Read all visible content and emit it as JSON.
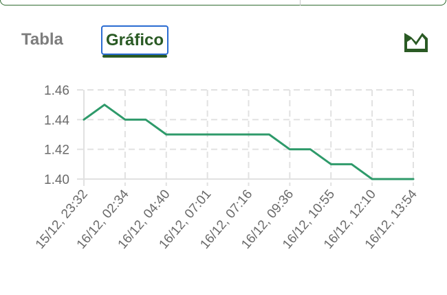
{
  "tabs": [
    {
      "label": "Tabla",
      "active": false
    },
    {
      "label": "Gráfico",
      "active": true
    }
  ],
  "icons": {
    "chart_toggle": "area-chart-icon"
  },
  "colors": {
    "line": "#2e9a6a",
    "active_tab_text": "#2a5a24",
    "focus_outline": "#2a6bd1",
    "inactive_tab_text": "#7d7d7d",
    "grid": "#e1e1e1"
  },
  "chart_data": {
    "type": "line",
    "title": "",
    "xlabel": "",
    "ylabel": "",
    "ylim": [
      1.4,
      1.46
    ],
    "yticks": [
      "1.46",
      "1.44",
      "1.42",
      "1.40"
    ],
    "grid": true,
    "legend": "none",
    "xtick_labels": [
      "15/12, 23:32",
      "16/12, 02:34",
      "16/12, 04:40",
      "16/12, 07:01",
      "16/12, 07:16",
      "16/12, 09:36",
      "16/12, 10:55",
      "16/12, 12:10",
      "16/12, 13:54"
    ],
    "x": [
      "15/12, 23:32",
      "",
      "16/12, 02:34",
      "",
      "16/12, 04:40",
      "",
      "16/12, 07:01",
      "",
      "16/12, 07:16",
      "",
      "16/12, 09:36",
      "",
      "16/12, 10:55",
      "",
      "16/12, 12:10",
      "",
      "16/12, 13:54"
    ],
    "series": [
      {
        "values": [
          1.44,
          1.45,
          1.44,
          1.44,
          1.43,
          1.43,
          1.43,
          1.43,
          1.43,
          1.43,
          1.42,
          1.42,
          1.41,
          1.41,
          1.4,
          1.4,
          1.4
        ]
      }
    ]
  }
}
